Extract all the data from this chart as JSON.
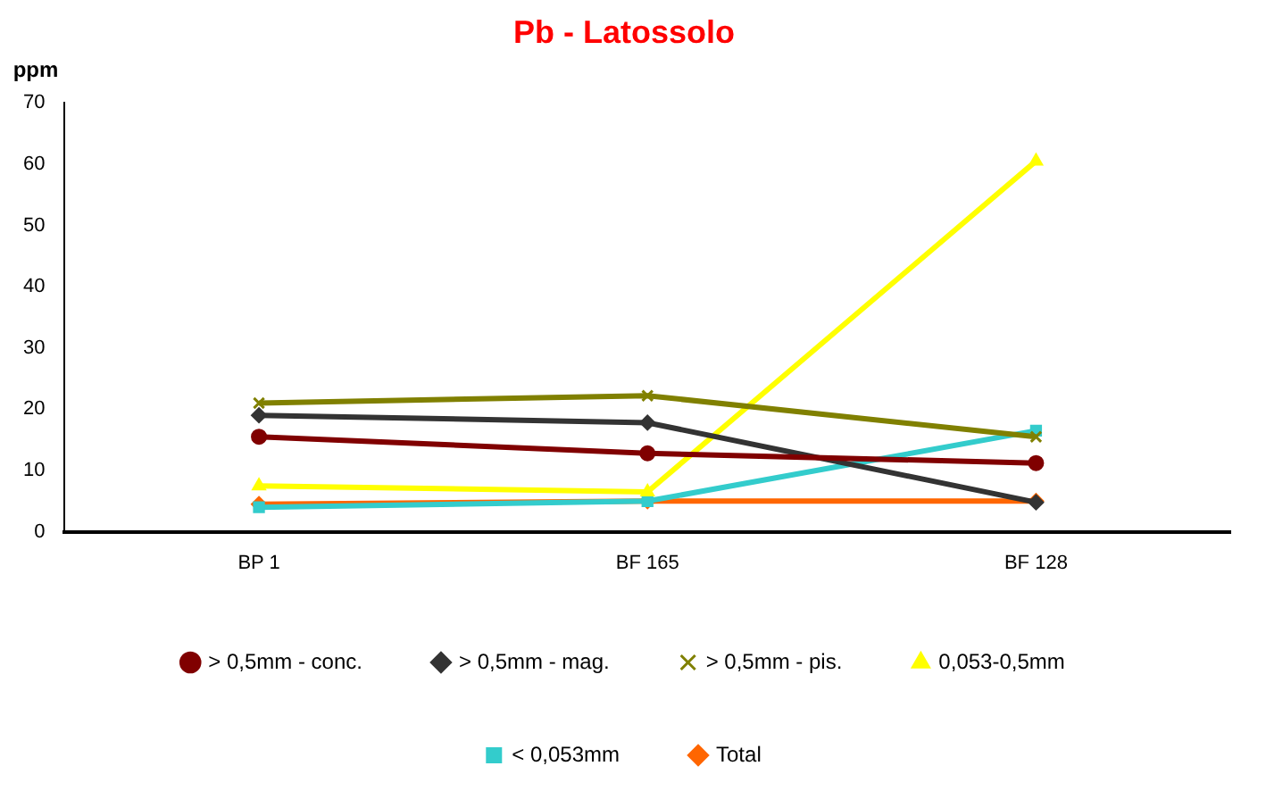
{
  "chart_data": {
    "type": "line",
    "title": "Pb - Latossolo",
    "ylabel": "ppm",
    "categories": [
      "BP 1",
      "BF 165",
      "BF 128"
    ],
    "series": [
      {
        "name": "Total",
        "color": "#ff6600",
        "marker": "diamond",
        "values": [
          4.5,
          5,
          5
        ]
      },
      {
        "name": "< 0,053mm",
        "color": "#33cccc",
        "marker": "square",
        "values": [
          4,
          5,
          16.5
        ]
      },
      {
        "name": "0,053-0,5mm",
        "color": "#ffff00",
        "marker": "triangle",
        "values": [
          7.5,
          6.5,
          60.5
        ]
      },
      {
        "name": "> 0,5mm - pis.",
        "color": "#808000",
        "marker": "cross",
        "values": [
          21,
          22.2,
          15.5
        ]
      },
      {
        "name": "> 0,5mm - mag.",
        "color": "#333333",
        "marker": "diamond",
        "values": [
          19,
          17.8,
          4.8
        ]
      },
      {
        "name": "> 0,5mm - conc.",
        "color": "#800000",
        "marker": "circle",
        "values": [
          15.5,
          12.8,
          11.2
        ]
      }
    ],
    "ylim": [
      0,
      70
    ],
    "yticks": [
      0,
      10,
      20,
      30,
      40,
      50,
      60,
      70
    ],
    "grid": false,
    "legend": "bottom"
  }
}
